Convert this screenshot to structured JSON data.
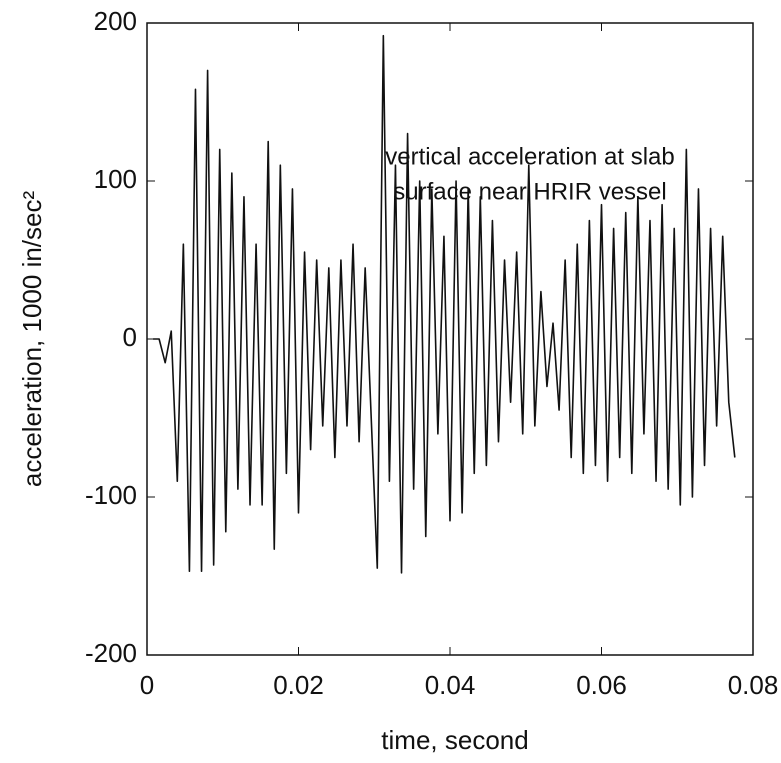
{
  "chart_data": {
    "type": "line",
    "x_label": "time, second",
    "y_label": "acceleration, 1000 in/sec²",
    "annotation": [
      "vertical acceleration at slab",
      "surface near HRIR vessel"
    ],
    "xlim": [
      0,
      0.08
    ],
    "xticks": [
      0,
      0.02,
      0.04,
      0.06,
      0.08
    ],
    "ylim": [
      -200,
      200
    ],
    "yticks": [
      -200,
      -100,
      0,
      100,
      200
    ],
    "grid": false,
    "series": [
      {
        "color": "#111111",
        "x": [
          0.0008,
          0.0016,
          0.0024,
          0.0032,
          0.004,
          0.0048,
          0.0056,
          0.0064,
          0.0072,
          0.008,
          0.0088,
          0.0096,
          0.0104,
          0.0112,
          0.012,
          0.0128,
          0.0136,
          0.0144,
          0.0152,
          0.016,
          0.0168,
          0.0176,
          0.0184,
          0.0192,
          0.02,
          0.0208,
          0.0216,
          0.0224,
          0.0232,
          0.024,
          0.0248,
          0.0256,
          0.0264,
          0.0272,
          0.028,
          0.0288,
          0.0296,
          0.0304,
          0.0312,
          0.032,
          0.0328,
          0.0336,
          0.0344,
          0.0352,
          0.036,
          0.0368,
          0.0376,
          0.0384,
          0.0392,
          0.04,
          0.0408,
          0.0416,
          0.0424,
          0.0432,
          0.044,
          0.0448,
          0.0456,
          0.0464,
          0.0472,
          0.048,
          0.0488,
          0.0496,
          0.0504,
          0.0512,
          0.052,
          0.0528,
          0.0536,
          0.0544,
          0.0552,
          0.056,
          0.0568,
          0.0576,
          0.0584,
          0.0592,
          0.06,
          0.0608,
          0.0616,
          0.0624,
          0.0632,
          0.064,
          0.0648,
          0.0656,
          0.0664,
          0.0672,
          0.068,
          0.0688,
          0.0696,
          0.0704,
          0.0712,
          0.072,
          0.0728,
          0.0736,
          0.0744,
          0.0752,
          0.076,
          0.0768,
          0.0776
        ],
        "values": [
          0,
          0,
          -15,
          5,
          -90,
          60,
          -147,
          158,
          -147,
          170,
          -143,
          120,
          -122,
          105,
          -95,
          90,
          -105,
          60,
          -105,
          125,
          -133,
          110,
          -85,
          95,
          -110,
          55,
          -70,
          50,
          -55,
          45,
          -75,
          50,
          -55,
          60,
          -65,
          45,
          -50,
          -145,
          192,
          -90,
          110,
          -148,
          130,
          -95,
          100,
          -125,
          95,
          -60,
          65,
          -115,
          100,
          -110,
          95,
          -85,
          90,
          -80,
          75,
          -65,
          50,
          -40,
          55,
          -60,
          110,
          -55,
          30,
          -30,
          10,
          -45,
          50,
          -75,
          60,
          -85,
          75,
          -80,
          85,
          -90,
          70,
          -75,
          80,
          -85,
          90,
          -60,
          75,
          -90,
          85,
          -95,
          70,
          -105,
          120,
          -100,
          95,
          -80,
          70,
          -55,
          65,
          -40,
          -75
        ]
      }
    ]
  }
}
